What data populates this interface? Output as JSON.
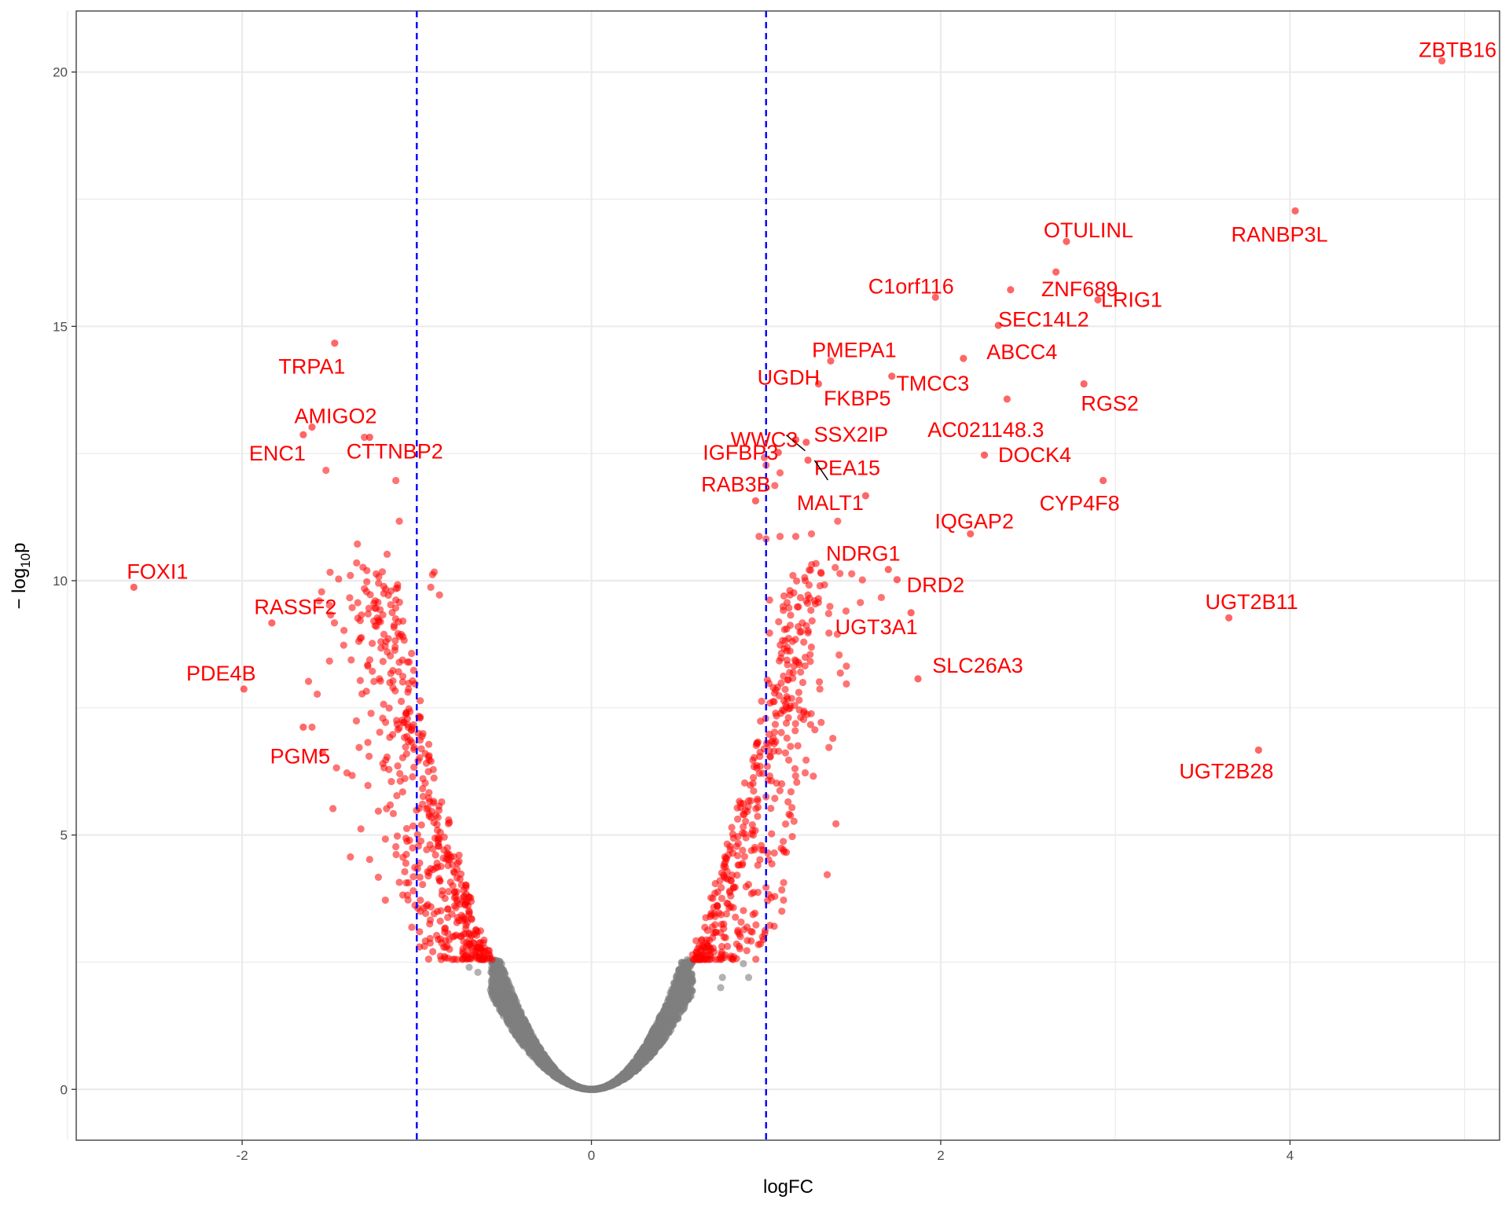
{
  "colors": {
    "significant": "#ff0000",
    "nonsignificant": "#7f7f7f",
    "threshold_line": "#0000ff",
    "gridline": "#ebebeb",
    "label": "#ff0000"
  },
  "chart_data": {
    "type": "scatter",
    "title": "",
    "xlabel": "logFC",
    "ylabel_prefix": "− log",
    "ylabel_subscript": "10",
    "ylabel_suffix": "p",
    "xlim": [
      -2.95,
      5.2
    ],
    "ylim": [
      -1.0,
      21.2
    ],
    "xticks": [
      -2,
      0,
      2,
      4
    ],
    "xtick_labels": [
      "-2",
      "0",
      "2",
      "4"
    ],
    "yticks": [
      0,
      5,
      10,
      15,
      20
    ],
    "ytick_labels": [
      "0",
      "5",
      "10",
      "15",
      "20"
    ],
    "grid": true,
    "thresholds": {
      "logFC": [
        -1,
        1
      ],
      "neglog10p": 2.55
    },
    "labeled_genes": [
      {
        "name": "ZBTB16",
        "x": 4.87,
        "y": 20.22
      },
      {
        "name": "RANBP3L",
        "x": 4.03,
        "y": 17.27
      },
      {
        "name": "OTULINL",
        "x": 2.72,
        "y": 16.67
      },
      {
        "name": "ZNF689",
        "x": 2.66,
        "y": 16.07
      },
      {
        "name": "C1orf116",
        "x": 1.97,
        "y": 15.57
      },
      {
        "name": "LRIG1",
        "x": 2.9,
        "y": 15.52
      },
      {
        "name": "SEC14L2",
        "x": 2.4,
        "y": 15.72
      },
      {
        "name": "TRPA1",
        "x": -1.47,
        "y": 14.67
      },
      {
        "name": "ABCC4",
        "x": 2.33,
        "y": 15.02
      },
      {
        "name": "PMEPA1",
        "x": 1.37,
        "y": 14.32
      },
      {
        "name": "RGS2",
        "x": 2.82,
        "y": 13.87
      },
      {
        "name": "UGDH",
        "x": 1.3,
        "y": 13.87
      },
      {
        "name": "TMCC3",
        "x": 2.13,
        "y": 14.37
      },
      {
        "name": "FKBP5",
        "x": 1.72,
        "y": 14.02
      },
      {
        "name": "AC021148.3",
        "x": 2.38,
        "y": 13.57
      },
      {
        "name": "AMIGO2",
        "x": -1.6,
        "y": 13.02
      },
      {
        "name": "WWC3",
        "x": 1.17,
        "y": 12.77
      },
      {
        "name": "SSX2IP",
        "x": 1.23,
        "y": 12.72
      },
      {
        "name": "ENC1",
        "x": -1.65,
        "y": 12.87
      },
      {
        "name": "IGFBP3",
        "x": 1.07,
        "y": 12.52
      },
      {
        "name": "DOCK4",
        "x": 2.25,
        "y": 12.47
      },
      {
        "name": "CTTNBP2",
        "x": -1.27,
        "y": 12.82
      },
      {
        "name": "PEA15",
        "x": 1.24,
        "y": 12.37
      },
      {
        "name": "CYP4F8",
        "x": 2.93,
        "y": 11.97
      },
      {
        "name": "RAB3B",
        "x": 0.94,
        "y": 11.57
      },
      {
        "name": "MALT1",
        "x": 1.57,
        "y": 11.67
      },
      {
        "name": "IQGAP2",
        "x": 2.17,
        "y": 10.92
      },
      {
        "name": "FOXI1",
        "x": -2.62,
        "y": 9.87
      },
      {
        "name": "NDRG1",
        "x": 1.7,
        "y": 10.22
      },
      {
        "name": "DRD2",
        "x": 1.75,
        "y": 10.02
      },
      {
        "name": "RASSF2",
        "x": -1.83,
        "y": 9.17
      },
      {
        "name": "UGT2B11",
        "x": 3.65,
        "y": 9.27
      },
      {
        "name": "UGT3A1",
        "x": 1.83,
        "y": 9.37
      },
      {
        "name": "SLC26A3",
        "x": 1.87,
        "y": 8.07
      },
      {
        "name": "PDE4B",
        "x": -1.99,
        "y": 7.87
      },
      {
        "name": "PGM5",
        "x": -1.65,
        "y": 7.12
      },
      {
        "name": "UGT2B28",
        "x": 3.82,
        "y": 6.67
      }
    ],
    "extra_significant_points": [
      [
        -0.9,
        10.17
      ],
      [
        -0.91,
        10.12
      ],
      [
        -0.92,
        9.87
      ],
      [
        -0.87,
        9.72
      ],
      [
        -1.11,
        9.92
      ],
      [
        -1.12,
        9.62
      ],
      [
        -1.13,
        9.12
      ],
      [
        -1.5,
        9.52
      ],
      [
        -1.37,
        9.47
      ],
      [
        -1.17,
        10.52
      ],
      [
        -1.34,
        10.72
      ],
      [
        -1.1,
        11.17
      ],
      [
        -1.12,
        11.97
      ],
      [
        -1.52,
        12.17
      ],
      [
        -1.3,
        12.82
      ],
      [
        -1.5,
        8.42
      ],
      [
        -1.62,
        8.02
      ],
      [
        -1.57,
        7.77
      ],
      [
        -1.28,
        8.32
      ],
      [
        -1.08,
        8.12
      ],
      [
        -1.01,
        7.97
      ],
      [
        -1.19,
        7.57
      ],
      [
        -1.6,
        7.12
      ],
      [
        -1.46,
        6.32
      ],
      [
        -1.54,
        6.62
      ],
      [
        -1.4,
        6.22
      ],
      [
        -1.33,
        6.72
      ],
      [
        -1.28,
        6.82
      ],
      [
        -1.37,
        6.17
      ],
      [
        -1.48,
        5.52
      ],
      [
        -1.32,
        5.12
      ],
      [
        -1.22,
        5.47
      ],
      [
        -1.18,
        4.92
      ],
      [
        -1.38,
        4.57
      ],
      [
        -1.27,
        4.52
      ],
      [
        -1.12,
        4.77
      ],
      [
        -1.06,
        4.62
      ],
      [
        -1.22,
        4.17
      ],
      [
        -1.1,
        4.07
      ],
      [
        -1.18,
        3.72
      ],
      [
        -1.08,
        3.82
      ],
      [
        -1.01,
        3.62
      ],
      [
        -0.96,
        3.57
      ],
      [
        1.08,
        10.87
      ],
      [
        1.17,
        10.87
      ],
      [
        1.0,
        10.82
      ],
      [
        1.24,
        9.72
      ],
      [
        1.3,
        9.57
      ],
      [
        1.12,
        8.62
      ],
      [
        1.16,
        8.32
      ],
      [
        1.36,
        8.97
      ],
      [
        1.46,
        8.32
      ],
      [
        1.46,
        7.97
      ],
      [
        1.36,
        6.72
      ],
      [
        1.4,
        5.22
      ],
      [
        1.35,
        4.22
      ],
      [
        1.16,
        5.27
      ],
      [
        1.15,
        4.97
      ],
      [
        1.06,
        6.02
      ],
      [
        1.05,
        5.72
      ],
      [
        1.09,
        3.92
      ],
      [
        1.1,
        3.72
      ],
      [
        1.03,
        3.77
      ],
      [
        1.0,
        3.97
      ],
      [
        1.12,
        9.57
      ],
      [
        1.02,
        8.97
      ],
      [
        1.11,
        8.82
      ],
      [
        1.02,
        9.62
      ],
      [
        1.54,
        9.57
      ],
      [
        1.66,
        9.67
      ],
      [
        1.26,
        10.92
      ],
      [
        1.41,
        11.17
      ],
      [
        0.96,
        10.87
      ],
      [
        1.08,
        12.12
      ],
      [
        1.0,
        12.27
      ],
      [
        0.99,
        12.42
      ],
      [
        1.05,
        11.87
      ]
    ]
  }
}
